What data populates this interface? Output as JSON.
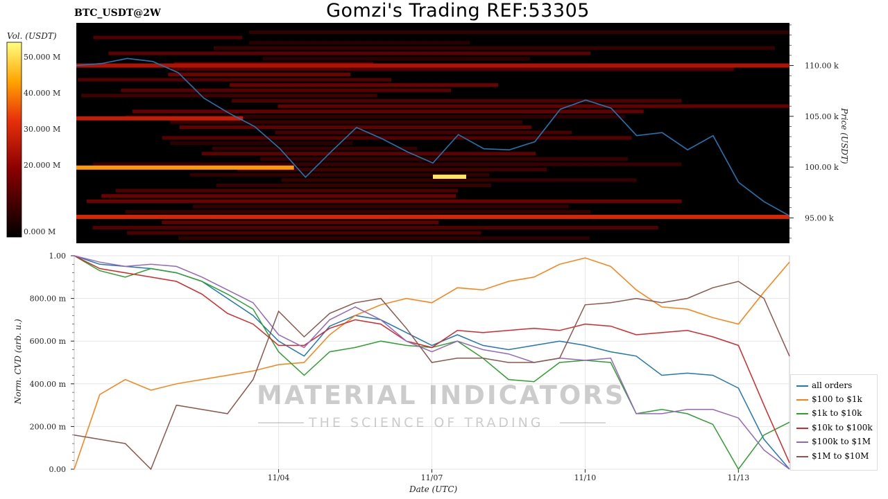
{
  "header": {
    "pair": "BTC_USDT@2W",
    "title": "Gomzi's Trading REF:53305"
  },
  "watermark": {
    "brand": "MATERIAL INDICATORS",
    "tagline": "THE SCIENCE OF TRADING"
  },
  "colorbar": {
    "label": "Vol. (USDT)",
    "ticks": [
      "0.000 M",
      "20.000 M",
      "30.000 M",
      "40.000 M",
      "50.000 M"
    ]
  },
  "colors": {
    "all_orders": "#1f77b4",
    "s100_1k": "#ff7f0e",
    "s1k_10k": "#2ca02c",
    "s10k_100k": "#d62728",
    "s100k_1m": "#9467bd",
    "s1m_10m": "#8c564b"
  },
  "chart_data": [
    {
      "type": "heatmap",
      "title": "Gomzi's Trading REF:53305",
      "ylabel": "Price (USDT)",
      "yticks": [
        "95.00 k",
        "100.00 k",
        "105.00 k",
        "110.00 k"
      ],
      "ylim": [
        92500,
        114200
      ],
      "colorbar_label": "Vol. (USDT)",
      "colorbar_range": [
        0,
        54000000
      ],
      "price_line": {
        "color": "#1f77b4",
        "x": [
          "10/31 0h",
          "11/01 0h",
          "11/01 12h",
          "11/02 0h",
          "11/02 12h",
          "11/03 0h",
          "11/03 12h",
          "11/04 0h",
          "11/04 12h",
          "11/05 0h",
          "11/05 12h",
          "11/06 0h",
          "11/06 12h",
          "11/07 0h",
          "11/07 12h",
          "11/08 0h",
          "11/08 12h",
          "11/09 0h",
          "11/09 12h",
          "11/10 0h",
          "11/10 12h",
          "11/11 0h",
          "11/11 12h",
          "11/12 0h",
          "11/12 12h",
          "11/13 0h",
          "11/13 12h",
          "11/14 0h",
          "11/14 12h"
        ],
        "y": [
          110000,
          110200,
          110700,
          110400,
          109300,
          106800,
          105300,
          104000,
          101800,
          99000,
          101500,
          103900,
          102800,
          101500,
          100400,
          103200,
          101800,
          101700,
          102500,
          105700,
          106600,
          105800,
          103100,
          103400,
          101700,
          103100,
          98500,
          96600,
          95200
        ]
      },
      "bands": [
        {
          "price": 99950,
          "intensity": 0.78,
          "from": "10/31",
          "to": "11/04"
        },
        {
          "price": 95100,
          "intensity": 0.55,
          "from": "10/31",
          "to": "11/14"
        },
        {
          "price": 110000,
          "intensity": 0.45,
          "from": "10/31",
          "to": "11/14"
        },
        {
          "price": 104800,
          "intensity": 0.5,
          "from": "10/31",
          "to": "11/03"
        },
        {
          "price": 99050,
          "intensity": 0.95,
          "from": "11/07",
          "to": "11/07"
        }
      ]
    },
    {
      "type": "line",
      "xlabel": "Date (UTC)",
      "ylabel": "Norm. CVD (arb. u.)",
      "ylim": [
        0,
        1
      ],
      "yticks": [
        "0.00",
        "200.00 m",
        "400.00 m",
        "600.00 m",
        "800.00 m",
        "1.00"
      ],
      "xticks": [
        "11/04",
        "11/07",
        "11/10",
        "11/13"
      ],
      "x": [
        "10/31 0h",
        "11/01 0h",
        "11/01 12h",
        "11/02 0h",
        "11/02 12h",
        "11/03 0h",
        "11/03 12h",
        "11/04 0h",
        "11/04 12h",
        "11/05 0h",
        "11/05 12h",
        "11/06 0h",
        "11/06 12h",
        "11/07 0h",
        "11/07 12h",
        "11/08 0h",
        "11/08 12h",
        "11/09 0h",
        "11/09 12h",
        "11/10 0h",
        "11/10 12h",
        "11/11 0h",
        "11/11 12h",
        "11/12 0h",
        "11/12 12h",
        "11/13 0h",
        "11/13 12h",
        "11/14 0h",
        "11/14 12h"
      ],
      "series": [
        {
          "name": "all orders",
          "values": [
            1.0,
            0.96,
            0.95,
            0.94,
            0.92,
            0.88,
            0.8,
            0.72,
            0.6,
            0.53,
            0.67,
            0.72,
            0.7,
            0.64,
            0.58,
            0.63,
            0.58,
            0.56,
            0.58,
            0.6,
            0.58,
            0.55,
            0.53,
            0.44,
            0.45,
            0.44,
            0.38,
            0.14,
            0.0
          ]
        },
        {
          "name": "$100 to $1k",
          "values": [
            0.0,
            0.35,
            0.42,
            0.37,
            0.4,
            0.42,
            0.44,
            0.46,
            0.49,
            0.5,
            0.63,
            0.72,
            0.77,
            0.8,
            0.78,
            0.85,
            0.84,
            0.88,
            0.9,
            0.96,
            0.99,
            0.95,
            0.84,
            0.76,
            0.75,
            0.71,
            0.68,
            0.83,
            0.97
          ]
        },
        {
          "name": "$1k to $10k",
          "values": [
            1.0,
            0.93,
            0.9,
            0.94,
            0.92,
            0.88,
            0.82,
            0.75,
            0.55,
            0.44,
            0.55,
            0.57,
            0.6,
            0.58,
            0.57,
            0.6,
            0.52,
            0.42,
            0.41,
            0.5,
            0.51,
            0.5,
            0.26,
            0.28,
            0.26,
            0.21,
            0.0,
            0.16,
            0.22
          ]
        },
        {
          "name": "$10k to $100k",
          "values": [
            1.0,
            0.94,
            0.92,
            0.9,
            0.88,
            0.82,
            0.73,
            0.68,
            0.58,
            0.58,
            0.66,
            0.7,
            0.68,
            0.6,
            0.57,
            0.65,
            0.64,
            0.65,
            0.66,
            0.65,
            0.68,
            0.67,
            0.63,
            0.64,
            0.65,
            0.62,
            0.58,
            0.3,
            0.03
          ]
        },
        {
          "name": "$100k to $1M",
          "values": [
            1.0,
            0.97,
            0.95,
            0.96,
            0.95,
            0.9,
            0.84,
            0.78,
            0.63,
            0.57,
            0.7,
            0.76,
            0.7,
            0.6,
            0.55,
            0.6,
            0.56,
            0.54,
            0.5,
            0.52,
            0.51,
            0.52,
            0.26,
            0.26,
            0.28,
            0.28,
            0.24,
            0.09,
            0.0
          ]
        },
        {
          "name": "$1M to $10M",
          "values": [
            0.16,
            0.14,
            0.12,
            0.0,
            0.3,
            0.28,
            0.26,
            0.42,
            0.74,
            0.62,
            0.73,
            0.78,
            0.8,
            0.66,
            0.5,
            0.52,
            0.52,
            0.5,
            0.5,
            0.52,
            0.77,
            0.78,
            0.8,
            0.78,
            0.8,
            0.85,
            0.88,
            0.8,
            0.53
          ]
        }
      ]
    }
  ]
}
